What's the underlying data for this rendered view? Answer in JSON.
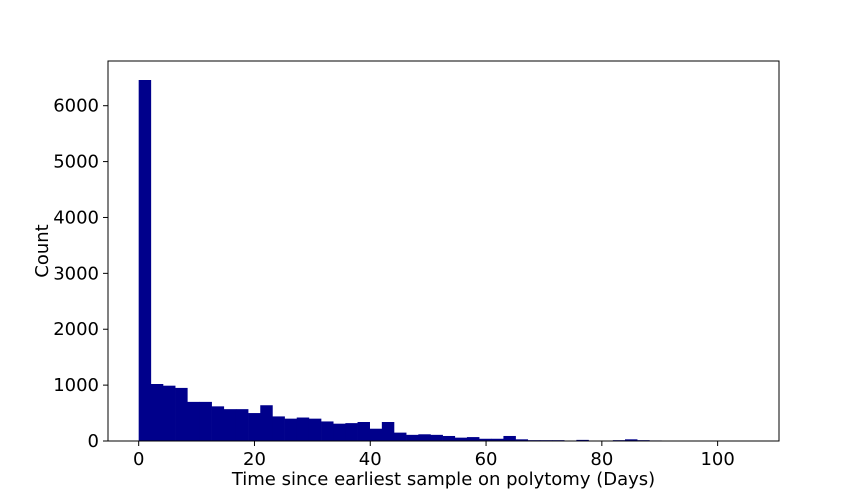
{
  "chart_data": {
    "type": "bar",
    "title": "",
    "xlabel": "Time since earliest sample on polytomy (Days)",
    "ylabel": "Count",
    "xlim": [
      -5.3,
      110.6
    ],
    "ylim": [
      0,
      6800
    ],
    "xticks": [
      0,
      20,
      40,
      60,
      80,
      100
    ],
    "yticks": [
      0,
      1000,
      2000,
      3000,
      4000,
      5000,
      6000
    ],
    "grid": false,
    "bar_color": "#00008b",
    "bin_edges": [
      0,
      2.1,
      4.2,
      6.3,
      8.4,
      10.5,
      12.6,
      14.7,
      16.8,
      18.9,
      21.0,
      23.1,
      25.2,
      27.3,
      29.4,
      31.5,
      33.6,
      35.7,
      37.8,
      39.9,
      42.0,
      44.1,
      46.2,
      48.3,
      50.4,
      52.5,
      54.6,
      56.7,
      58.8,
      60.9,
      63.0,
      65.1,
      67.2,
      69.3,
      71.4,
      73.5,
      75.6,
      77.7,
      79.8,
      81.9,
      84.0,
      86.1,
      88.2,
      90.3,
      92.4,
      94.5,
      96.6,
      98.7,
      100.8,
      102.9,
      105.0
    ],
    "values": [
      6460,
      1020,
      990,
      950,
      700,
      700,
      620,
      570,
      570,
      500,
      640,
      440,
      400,
      420,
      400,
      350,
      310,
      320,
      340,
      220,
      340,
      150,
      110,
      120,
      110,
      90,
      60,
      70,
      40,
      40,
      90,
      30,
      15,
      15,
      15,
      5,
      20,
      5,
      5,
      15,
      30,
      15,
      10,
      5,
      0,
      0,
      0,
      0,
      0,
      0
    ]
  }
}
